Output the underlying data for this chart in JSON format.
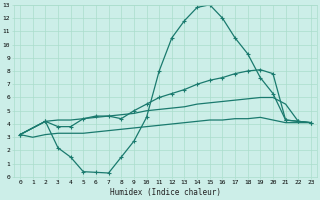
{
  "xlabel": "Humidex (Indice chaleur)",
  "background_color": "#cceee8",
  "grid_color": "#aaddcc",
  "line_color": "#1a7a6e",
  "xlim": [
    -0.5,
    23.5
  ],
  "ylim": [
    0,
    13
  ],
  "xticks": [
    0,
    1,
    2,
    3,
    4,
    5,
    6,
    7,
    8,
    9,
    10,
    11,
    12,
    13,
    14,
    15,
    16,
    17,
    18,
    19,
    20,
    21,
    22,
    23
  ],
  "yticks": [
    0,
    1,
    2,
    3,
    4,
    5,
    6,
    7,
    8,
    9,
    10,
    11,
    12,
    13
  ],
  "line_big_peak_x": [
    0,
    2,
    3,
    4,
    5,
    6,
    7,
    8,
    9,
    10,
    11,
    12,
    13,
    14,
    15,
    16,
    17,
    18,
    19,
    20,
    21,
    22,
    23
  ],
  "line_big_peak_y": [
    3.2,
    4.2,
    2.2,
    1.5,
    0.4,
    0.35,
    0.3,
    1.5,
    2.7,
    4.5,
    8.0,
    10.5,
    11.8,
    12.8,
    13.0,
    12.0,
    10.5,
    9.3,
    7.5,
    6.3,
    4.3,
    4.2,
    4.1
  ],
  "line_small_peak_x": [
    0,
    2,
    3,
    4,
    5,
    6,
    7,
    8,
    9,
    10,
    11,
    12,
    13,
    14,
    15,
    16,
    17,
    18,
    19,
    20,
    21,
    22,
    23
  ],
  "line_small_peak_y": [
    3.2,
    4.2,
    3.8,
    3.8,
    4.4,
    4.6,
    4.6,
    4.4,
    5.0,
    5.5,
    6.0,
    6.3,
    6.6,
    7.0,
    7.3,
    7.5,
    7.8,
    8.0,
    8.1,
    7.8,
    4.3,
    4.2,
    4.1
  ],
  "line_upper_flat_x": [
    0,
    2,
    3,
    4,
    5,
    6,
    7,
    8,
    9,
    10,
    11,
    12,
    13,
    14,
    15,
    16,
    17,
    18,
    19,
    20,
    21,
    22,
    23
  ],
  "line_upper_flat_y": [
    3.2,
    4.2,
    4.3,
    4.3,
    4.4,
    4.5,
    4.6,
    4.7,
    4.8,
    5.0,
    5.1,
    5.2,
    5.3,
    5.5,
    5.6,
    5.7,
    5.8,
    5.9,
    6.0,
    6.0,
    5.5,
    4.2,
    4.1
  ],
  "line_lower_flat_x": [
    0,
    1,
    2,
    3,
    4,
    5,
    6,
    7,
    8,
    9,
    10,
    11,
    12,
    13,
    14,
    15,
    16,
    17,
    18,
    19,
    20,
    21,
    22,
    23
  ],
  "line_lower_flat_y": [
    3.2,
    3.0,
    3.2,
    3.3,
    3.3,
    3.3,
    3.4,
    3.5,
    3.6,
    3.7,
    3.8,
    3.9,
    4.0,
    4.1,
    4.2,
    4.3,
    4.3,
    4.4,
    4.4,
    4.5,
    4.3,
    4.1,
    4.1,
    4.1
  ]
}
